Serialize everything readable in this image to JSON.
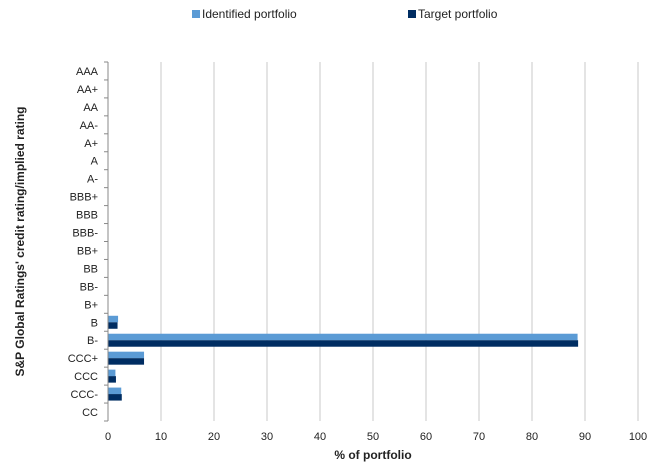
{
  "chart_data": {
    "type": "bar",
    "orientation": "horizontal",
    "categories": [
      "AAA",
      "AA+",
      "AA",
      "AA-",
      "A+",
      "A",
      "A-",
      "BBB+",
      "BBB",
      "BBB-",
      "BB+",
      "BB",
      "BB-",
      "B+",
      "B",
      "B-",
      "CCC+",
      "CCC",
      "CCC-",
      "CC"
    ],
    "series": [
      {
        "name": "Identified portfolio",
        "color": "#5B9BD5",
        "values": [
          0,
          0,
          0,
          0,
          0,
          0,
          0,
          0,
          0,
          0,
          0,
          0,
          0,
          0,
          1.9,
          88.6,
          6.8,
          1.4,
          2.5,
          0
        ]
      },
      {
        "name": "Target portfolio",
        "color": "#002D62",
        "values": [
          0,
          0,
          0,
          0,
          0,
          0,
          0,
          0,
          0,
          0,
          0,
          0,
          0,
          0,
          1.8,
          88.7,
          6.8,
          1.5,
          2.6,
          0
        ]
      }
    ],
    "xlabel": "% of portfolio",
    "ylabel": "S&P Global Ratings' credit rating/implied rating",
    "xlim": [
      0,
      100
    ],
    "xticks": [
      0,
      10,
      20,
      30,
      40,
      50,
      60,
      70,
      80,
      90,
      100
    ],
    "grid": "vertical",
    "legend_position": "top-center"
  }
}
